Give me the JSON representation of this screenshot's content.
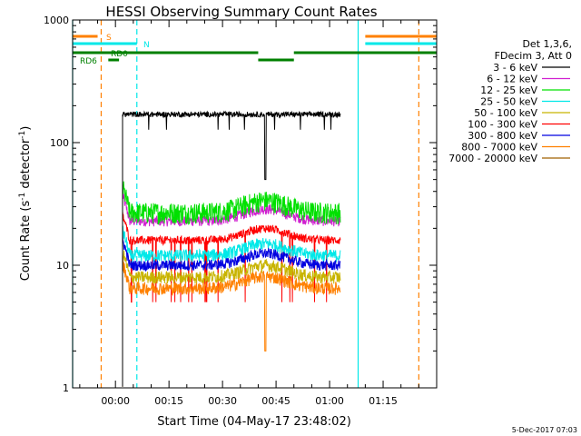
{
  "chart_data": {
    "type": "line",
    "title": "HESSI Observing Summary Count Rates",
    "xlabel": "Start Time (04-May-17 23:48:02)",
    "ylabel_main": "Count Rate (s",
    "ylabel_sup1": "-1",
    "ylabel_mid": " detector",
    "ylabel_sup2": "-1",
    "ylabel_end": ")",
    "yscale": "log",
    "ylim": [
      1,
      1000
    ],
    "xlim_minutes": [
      -12,
      90
    ],
    "xticks": [
      {
        "m": 0,
        "label": "00:00"
      },
      {
        "m": 15,
        "label": "00:15"
      },
      {
        "m": 30,
        "label": "00:30"
      },
      {
        "m": 45,
        "label": "00:45"
      },
      {
        "m": 60,
        "label": "01:00"
      },
      {
        "m": 75,
        "label": "01:15"
      }
    ],
    "yticks": [
      {
        "v": 1,
        "label": "1"
      },
      {
        "v": 10,
        "label": "10"
      },
      {
        "v": 100,
        "label": "100"
      },
      {
        "v": 1000,
        "label": "1000"
      }
    ],
    "legend_header": [
      "Det 1,3,6,",
      "FDecim 3, Att 0"
    ],
    "series": [
      {
        "name": "3 - 6 keV",
        "color": "#000000",
        "level": 170
      },
      {
        "name": "6 - 12 keV",
        "color": "#d020d0",
        "level": 23
      },
      {
        "name": "12 - 25 keV",
        "color": "#00e000",
        "level": 27
      },
      {
        "name": "25 - 50 keV",
        "color": "#00e8e8",
        "level": 12
      },
      {
        "name": "50 - 100 keV",
        "color": "#c8b400",
        "level": 8
      },
      {
        "name": "100 - 300 keV",
        "color": "#ff0000",
        "level": 16
      },
      {
        "name": "300 - 800 keV",
        "color": "#0000e0",
        "level": 10
      },
      {
        "name": "800 - 7000 keV",
        "color": "#ff8000",
        "level": 6.5
      },
      {
        "name": "7000 - 20000 keV",
        "color": "#a06000",
        "level": 0
      }
    ],
    "flags": [
      {
        "label": "S",
        "color": "#ff8000",
        "segments": [
          [
            -12,
            -5
          ],
          [
            70,
            90
          ]
        ]
      },
      {
        "label": "N",
        "color": "#00e8e8",
        "segments": [
          [
            -12,
            6
          ],
          [
            70,
            90
          ]
        ]
      },
      {
        "label": "RD0",
        "color": "#008000",
        "segments": [
          [
            -12,
            40
          ],
          [
            50,
            90
          ]
        ]
      },
      {
        "label": "RD6",
        "color": "#008000",
        "segments": [
          [
            -2,
            1
          ],
          [
            40,
            50
          ]
        ]
      }
    ],
    "vlines": [
      {
        "m": -4,
        "color": "#ff8000",
        "dashed": true
      },
      {
        "m": 6,
        "color": "#00e8e8",
        "dashed": true
      },
      {
        "m": 68,
        "color": "#00e8e8",
        "dashed": false
      },
      {
        "m": 85,
        "color": "#ff8000",
        "dashed": true
      },
      {
        "m": -12,
        "color": "#00e8e8",
        "dashed": false
      }
    ],
    "data_start_minutes": 2,
    "data_end_minutes": 63,
    "timestamp": "5-Dec-2017 07:03"
  }
}
